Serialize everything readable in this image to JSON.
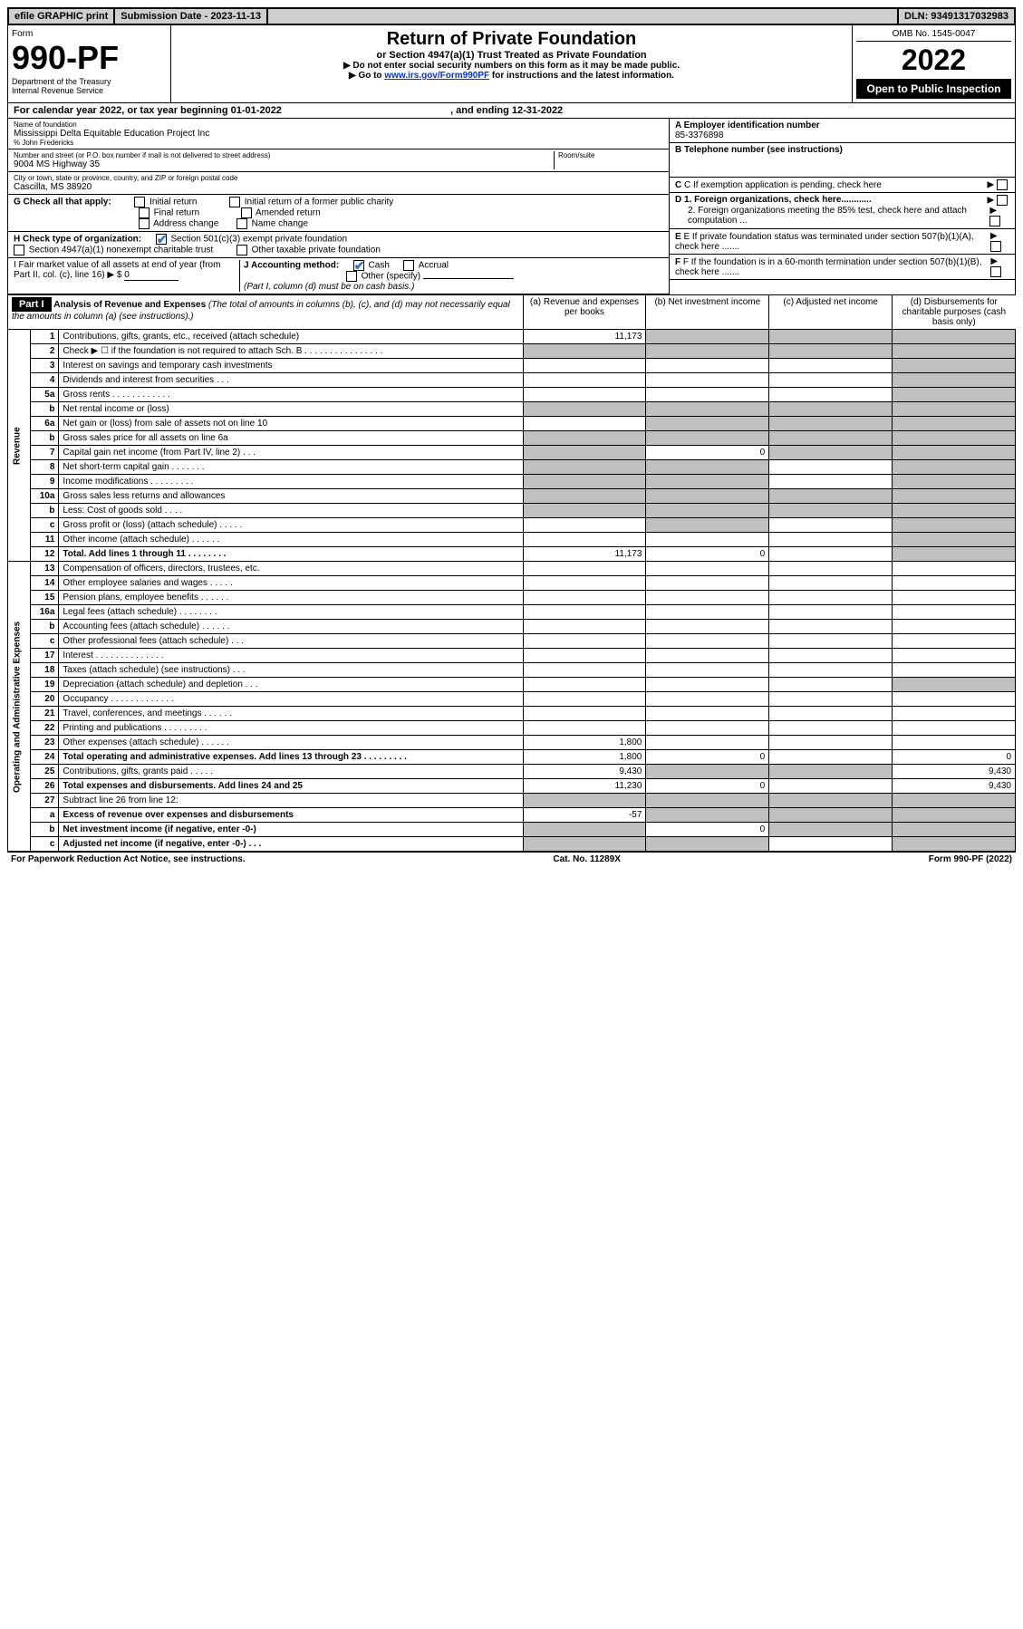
{
  "topbar": {
    "efile": "efile GRAPHIC print",
    "submission_label": "Submission Date - 2023-11-13",
    "dln": "DLN: 93491317032983"
  },
  "header": {
    "form_label": "Form",
    "form_number": "990-PF",
    "dept1": "Department of the Treasury",
    "dept2": "Internal Revenue Service",
    "title": "Return of Private Foundation",
    "subtitle": "or Section 4947(a)(1) Trust Treated as Private Foundation",
    "instr1": "▶ Do not enter social security numbers on this form as it may be made public.",
    "instr2_pre": "▶ Go to ",
    "instr2_link": "www.irs.gov/Form990PF",
    "instr2_post": " for instructions and the latest information.",
    "omb": "OMB No. 1545-0047",
    "year": "2022",
    "open_public": "Open to Public Inspection"
  },
  "calyear": {
    "text_pre": "For calendar year 2022, or tax year beginning ",
    "begin": "01-01-2022",
    "text_mid": " , and ending ",
    "end": "12-31-2022"
  },
  "info": {
    "name_label": "Name of foundation",
    "name": "Mississippi Delta Equitable Education Project Inc",
    "care_of": "% John Fredericks",
    "addr_label": "Number and street (or P.O. box number if mail is not delivered to street address)",
    "addr": "9004 MS Highway 35",
    "room_label": "Room/suite",
    "room": "",
    "city_label": "City or town, state or province, country, and ZIP or foreign postal code",
    "city": "Cascilla, MS  38920",
    "ein_label": "A Employer identification number",
    "ein": "85-3376898",
    "phone_label": "B Telephone number (see instructions)",
    "phone": "",
    "c_label": "C If exemption application is pending, check here",
    "d1_label": "D 1. Foreign organizations, check here............",
    "d2_label": "2. Foreign organizations meeting the 85% test, check here and attach computation ...",
    "e_label": "E If private foundation status was terminated under section 507(b)(1)(A), check here .......",
    "f_label": "F If the foundation is in a 60-month termination under section 507(b)(1)(B), check here .......",
    "g_label": "G Check all that apply:",
    "g_initial": "Initial return",
    "g_initial_former": "Initial return of a former public charity",
    "g_final": "Final return",
    "g_amended": "Amended return",
    "g_addr_change": "Address change",
    "g_name_change": "Name change",
    "h_label": "H Check type of organization:",
    "h_501c3": "Section 501(c)(3) exempt private foundation",
    "h_4947": "Section 4947(a)(1) nonexempt charitable trust",
    "h_other": "Other taxable private foundation",
    "i_label": "I Fair market value of all assets at end of year (from Part II, col. (c), line 16)",
    "i_value": "0",
    "j_label": "J Accounting method:",
    "j_cash": "Cash",
    "j_accrual": "Accrual",
    "j_other": "Other (specify)",
    "j_note": "(Part I, column (d) must be on cash basis.)"
  },
  "part1": {
    "label": "Part I",
    "title": "Analysis of Revenue and Expenses",
    "title_note": "(The total of amounts in columns (b), (c), and (d) may not necessarily equal the amounts in column (a) (see instructions).)",
    "col_a": "(a) Revenue and expenses per books",
    "col_b": "(b) Net investment income",
    "col_c": "(c) Adjusted net income",
    "col_d": "(d) Disbursements for charitable purposes (cash basis only)",
    "revenue_label": "Revenue",
    "expenses_label": "Operating and Administrative Expenses",
    "rows": [
      {
        "n": "1",
        "d": "Contributions, gifts, grants, etc., received (attach schedule)",
        "a": "11,173",
        "b": "shaded",
        "c": "shaded",
        "dd": "shaded"
      },
      {
        "n": "2",
        "d": "Check ▶ ☐ if the foundation is not required to attach Sch. B   .  .  .  .  .  .  .  .  .  .  .  .  .  .  .  .",
        "a": "shaded",
        "b": "shaded",
        "c": "shaded",
        "dd": "shaded"
      },
      {
        "n": "3",
        "d": "Interest on savings and temporary cash investments",
        "a": "",
        "b": "",
        "c": "",
        "dd": "shaded"
      },
      {
        "n": "4",
        "d": "Dividends and interest from securities   .  .  .",
        "a": "",
        "b": "",
        "c": "",
        "dd": "shaded"
      },
      {
        "n": "5a",
        "d": "Gross rents   .  .  .  .  .  .  .  .  .  .  .  .",
        "a": "",
        "b": "",
        "c": "",
        "dd": "shaded"
      },
      {
        "n": "b",
        "d": "Net rental income or (loss)",
        "a": "shaded",
        "b": "shaded",
        "c": "shaded",
        "dd": "shaded"
      },
      {
        "n": "6a",
        "d": "Net gain or (loss) from sale of assets not on line 10",
        "a": "",
        "b": "shaded",
        "c": "shaded",
        "dd": "shaded"
      },
      {
        "n": "b",
        "d": "Gross sales price for all assets on line 6a",
        "a": "shaded",
        "b": "shaded",
        "c": "shaded",
        "dd": "shaded"
      },
      {
        "n": "7",
        "d": "Capital gain net income (from Part IV, line 2)   .  .  .",
        "a": "shaded",
        "b": "0",
        "c": "shaded",
        "dd": "shaded"
      },
      {
        "n": "8",
        "d": "Net short-term capital gain   .  .  .  .  .  .  .",
        "a": "shaded",
        "b": "shaded",
        "c": "",
        "dd": "shaded"
      },
      {
        "n": "9",
        "d": "Income modifications   .  .  .  .  .  .  .  .  .",
        "a": "shaded",
        "b": "shaded",
        "c": "",
        "dd": "shaded"
      },
      {
        "n": "10a",
        "d": "Gross sales less returns and allowances",
        "a": "shaded",
        "b": "shaded",
        "c": "shaded",
        "dd": "shaded"
      },
      {
        "n": "b",
        "d": "Less: Cost of goods sold   .  .  .  .",
        "a": "shaded",
        "b": "shaded",
        "c": "shaded",
        "dd": "shaded"
      },
      {
        "n": "c",
        "d": "Gross profit or (loss) (attach schedule)   .  .  .  .  .",
        "a": "",
        "b": "shaded",
        "c": "",
        "dd": "shaded"
      },
      {
        "n": "11",
        "d": "Other income (attach schedule)   .  .  .  .  .  .",
        "a": "",
        "b": "",
        "c": "",
        "dd": "shaded"
      },
      {
        "n": "12",
        "d": "Total. Add lines 1 through 11   .  .  .  .  .  .  .  .",
        "bold": true,
        "a": "11,173",
        "b": "0",
        "c": "",
        "dd": "shaded"
      },
      {
        "n": "13",
        "d": "Compensation of officers, directors, trustees, etc.",
        "a": "",
        "b": "",
        "c": "",
        "dd": ""
      },
      {
        "n": "14",
        "d": "Other employee salaries and wages   .  .  .  .  .",
        "a": "",
        "b": "",
        "c": "",
        "dd": ""
      },
      {
        "n": "15",
        "d": "Pension plans, employee benefits   .  .  .  .  .  .",
        "a": "",
        "b": "",
        "c": "",
        "dd": ""
      },
      {
        "n": "16a",
        "d": "Legal fees (attach schedule)  .  .  .  .  .  .  .  .",
        "a": "",
        "b": "",
        "c": "",
        "dd": ""
      },
      {
        "n": "b",
        "d": "Accounting fees (attach schedule)  .  .  .  .  .  .",
        "a": "",
        "b": "",
        "c": "",
        "dd": ""
      },
      {
        "n": "c",
        "d": "Other professional fees (attach schedule)   .  .  .",
        "a": "",
        "b": "",
        "c": "",
        "dd": ""
      },
      {
        "n": "17",
        "d": "Interest  .  .  .  .  .  .  .  .  .  .  .  .  .  .",
        "a": "",
        "b": "",
        "c": "",
        "dd": ""
      },
      {
        "n": "18",
        "d": "Taxes (attach schedule) (see instructions)   .  .  .",
        "a": "",
        "b": "",
        "c": "",
        "dd": ""
      },
      {
        "n": "19",
        "d": "Depreciation (attach schedule) and depletion   .  .  .",
        "a": "",
        "b": "",
        "c": "",
        "dd": "shaded"
      },
      {
        "n": "20",
        "d": "Occupancy  .  .  .  .  .  .  .  .  .  .  .  .  .",
        "a": "",
        "b": "",
        "c": "",
        "dd": ""
      },
      {
        "n": "21",
        "d": "Travel, conferences, and meetings  .  .  .  .  .  .",
        "a": "",
        "b": "",
        "c": "",
        "dd": ""
      },
      {
        "n": "22",
        "d": "Printing and publications  .  .  .  .  .  .  .  .  .",
        "a": "",
        "b": "",
        "c": "",
        "dd": ""
      },
      {
        "n": "23",
        "d": "Other expenses (attach schedule)  .  .  .  .  .  .",
        "a": "1,800",
        "b": "",
        "c": "",
        "dd": ""
      },
      {
        "n": "24",
        "d": "Total operating and administrative expenses. Add lines 13 through 23   .  .  .  .  .  .  .  .  .",
        "bold": true,
        "a": "1,800",
        "b": "0",
        "c": "",
        "dd": "0"
      },
      {
        "n": "25",
        "d": "Contributions, gifts, grants paid   .  .  .  .  .",
        "a": "9,430",
        "b": "shaded",
        "c": "shaded",
        "dd": "9,430"
      },
      {
        "n": "26",
        "d": "Total expenses and disbursements. Add lines 24 and 25",
        "bold": true,
        "a": "11,230",
        "b": "0",
        "c": "",
        "dd": "9,430"
      },
      {
        "n": "27",
        "d": "Subtract line 26 from line 12:",
        "a": "shaded",
        "b": "shaded",
        "c": "shaded",
        "dd": "shaded"
      },
      {
        "n": "a",
        "d": "Excess of revenue over expenses and disbursements",
        "bold": true,
        "a": "-57",
        "b": "shaded",
        "c": "shaded",
        "dd": "shaded"
      },
      {
        "n": "b",
        "d": "Net investment income (if negative, enter -0-)",
        "bold": true,
        "a": "shaded",
        "b": "0",
        "c": "shaded",
        "dd": "shaded"
      },
      {
        "n": "c",
        "d": "Adjusted net income (if negative, enter -0-)   .  .  .",
        "bold": true,
        "a": "shaded",
        "b": "shaded",
        "c": "",
        "dd": "shaded"
      }
    ]
  },
  "footer": {
    "left": "For Paperwork Reduction Act Notice, see instructions.",
    "mid": "Cat. No. 11289X",
    "right": "Form 990-PF (2022)"
  }
}
